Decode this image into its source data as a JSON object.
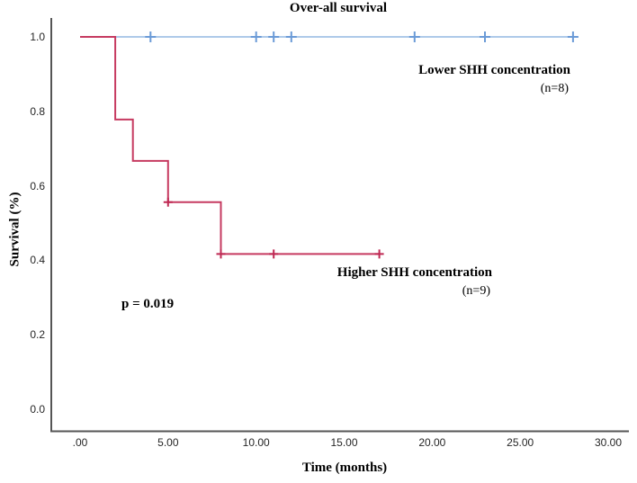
{
  "figure": {
    "title": "Over-all survival",
    "x_axis_title": "Time (months)",
    "y_axis_title": "Survival (%)"
  },
  "annotations": {
    "lower_group_label": "Lower SHH concentration",
    "lower_group_n": "(n=8)",
    "higher_group_label": "Higher SHH concentration",
    "higher_group_n": "(n=9)",
    "p_value": "p = 0.019"
  },
  "colors": {
    "lower_line": "#a3c3e6",
    "lower_censor": "#6b9bd7",
    "higher_line": "#c63a60",
    "higher_censor": "#bf2953",
    "axis_line": "#555555",
    "tick_text": "#262626",
    "text": "#000000"
  },
  "chart_data": {
    "type": "line",
    "subtype": "kaplan-meier-step",
    "title": "Over-all survival",
    "xlabel": "Time (months)",
    "ylabel": "Survival (%)",
    "xlim": [
      0,
      30
    ],
    "ylim": [
      0.0,
      1.0
    ],
    "grid": false,
    "legend_position": "inline-annotations",
    "x_ticks": [
      {
        "value": 0,
        "label": ".00"
      },
      {
        "value": 5,
        "label": "5.00"
      },
      {
        "value": 10,
        "label": "10.00"
      },
      {
        "value": 15,
        "label": "15.00"
      },
      {
        "value": 20,
        "label": "20.00"
      },
      {
        "value": 25,
        "label": "25.00"
      },
      {
        "value": 30,
        "label": "30.00"
      }
    ],
    "y_ticks": [
      {
        "value": 1.0,
        "label": "1.0"
      },
      {
        "value": 0.8,
        "label": "0.8"
      },
      {
        "value": 0.6,
        "label": "0.6"
      },
      {
        "value": 0.4,
        "label": "0.4"
      },
      {
        "value": 0.2,
        "label": "0.2"
      },
      {
        "value": 0.0,
        "label": "0.0"
      }
    ],
    "series": [
      {
        "name": "Lower SHH concentration",
        "n": 8,
        "p_value_note": "p = 0.019",
        "line_color": "#a3c3e6",
        "censor_color": "#6b9bd7",
        "steps": [
          [
            0,
            1.0
          ],
          [
            28,
            1.0
          ]
        ],
        "censored": [
          [
            4,
            1.0
          ],
          [
            10,
            1.0
          ],
          [
            11,
            1.0
          ],
          [
            12,
            1.0
          ],
          [
            19,
            1.0
          ],
          [
            23,
            1.0
          ],
          [
            28,
            1.0
          ]
        ]
      },
      {
        "name": "Higher SHH concentration",
        "n": 9,
        "p_value_note": "p = 0.019",
        "line_color": "#c63a60",
        "censor_color": "#bf2953",
        "steps": [
          [
            0,
            1.0
          ],
          [
            2,
            1.0
          ],
          [
            2,
            0.778
          ],
          [
            3,
            0.778
          ],
          [
            3,
            0.667
          ],
          [
            5,
            0.667
          ],
          [
            5,
            0.556
          ],
          [
            8,
            0.556
          ],
          [
            8,
            0.417
          ],
          [
            17,
            0.417
          ]
        ],
        "censored": [
          [
            5,
            0.556
          ],
          [
            8,
            0.417
          ],
          [
            11,
            0.417
          ],
          [
            17,
            0.417
          ]
        ]
      }
    ]
  }
}
